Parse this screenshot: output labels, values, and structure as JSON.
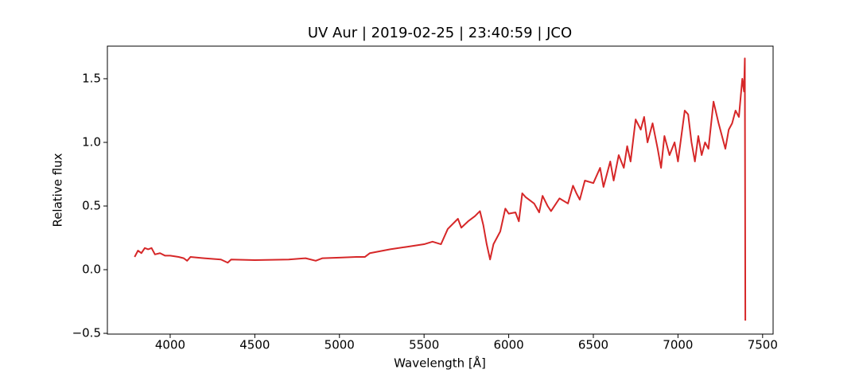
{
  "chart_data": {
    "type": "line",
    "title": "UV Aur | 2019-02-25 | 23:40:59 | JCO",
    "x_label": "Wavelength [Å]",
    "y_label": "Relative flux",
    "xlim": [
      3629,
      7562
    ],
    "ylim": [
      -0.506,
      1.756
    ],
    "xticks": [
      4000,
      4500,
      5000,
      5500,
      6000,
      6500,
      7000,
      7500
    ],
    "yticks": [
      {
        "value": -0.5,
        "label": "−0.5"
      },
      {
        "value": 0,
        "label": "0.0"
      },
      {
        "value": 0.5,
        "label": "0.5"
      },
      {
        "value": 1,
        "label": "1.0"
      },
      {
        "value": 1.5,
        "label": "1.5"
      }
    ],
    "x": [
      3790,
      3810,
      3830,
      3850,
      3870,
      3890,
      3910,
      3940,
      3970,
      4000,
      4050,
      4080,
      4100,
      4120,
      4200,
      4300,
      4340,
      4360,
      4500,
      4700,
      4800,
      4860,
      4900,
      5000,
      5100,
      5150,
      5180,
      5220,
      5300,
      5400,
      5500,
      5550,
      5600,
      5640,
      5700,
      5720,
      5760,
      5800,
      5830,
      5850,
      5870,
      5890,
      5910,
      5950,
      5980,
      6000,
      6040,
      6060,
      6080,
      6100,
      6150,
      6180,
      6200,
      6230,
      6250,
      6300,
      6350,
      6380,
      6400,
      6420,
      6450,
      6500,
      6540,
      6560,
      6600,
      6620,
      6650,
      6680,
      6700,
      6720,
      6750,
      6780,
      6800,
      6820,
      6850,
      6880,
      6900,
      6920,
      6950,
      6980,
      7000,
      7040,
      7060,
      7080,
      7100,
      7120,
      7140,
      7160,
      7180,
      7210,
      7240,
      7260,
      7280,
      7300,
      7320,
      7340,
      7360,
      7380,
      7390,
      7395,
      7398
    ],
    "series": [
      {
        "name": "UV Aur",
        "color": "#d62728",
        "values": [
          0.1,
          0.15,
          0.13,
          0.17,
          0.16,
          0.17,
          0.12,
          0.13,
          0.11,
          0.11,
          0.1,
          0.09,
          0.07,
          0.1,
          0.09,
          0.08,
          0.055,
          0.08,
          0.075,
          0.08,
          0.09,
          0.07,
          0.09,
          0.095,
          0.1,
          0.1,
          0.13,
          0.14,
          0.16,
          0.18,
          0.2,
          0.22,
          0.2,
          0.32,
          0.4,
          0.33,
          0.38,
          0.42,
          0.46,
          0.35,
          0.2,
          0.08,
          0.2,
          0.3,
          0.48,
          0.44,
          0.45,
          0.38,
          0.6,
          0.57,
          0.52,
          0.45,
          0.58,
          0.5,
          0.46,
          0.56,
          0.52,
          0.66,
          0.6,
          0.55,
          0.7,
          0.68,
          0.8,
          0.65,
          0.85,
          0.7,
          0.9,
          0.8,
          0.97,
          0.85,
          1.18,
          1.1,
          1.2,
          1.0,
          1.15,
          0.95,
          0.8,
          1.05,
          0.9,
          1.0,
          0.85,
          1.25,
          1.22,
          1.0,
          0.85,
          1.05,
          0.9,
          1.0,
          0.95,
          1.32,
          1.15,
          1.05,
          0.95,
          1.1,
          1.15,
          1.25,
          1.2,
          1.5,
          1.4,
          1.66,
          -0.4
        ]
      }
    ]
  }
}
